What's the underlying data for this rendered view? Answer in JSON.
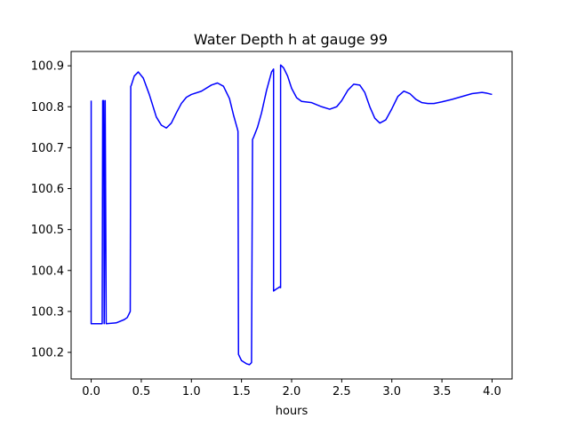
{
  "chart_data": {
    "type": "line",
    "title": "Water Depth h at gauge 99",
    "xlabel": "hours",
    "ylabel": "",
    "xlim": [
      -0.2,
      4.2
    ],
    "ylim": [
      100.135,
      100.935
    ],
    "xticks": [
      0.0,
      0.5,
      1.0,
      1.5,
      2.0,
      2.5,
      3.0,
      3.5,
      4.0
    ],
    "xtick_labels": [
      "0.0",
      "0.5",
      "1.0",
      "1.5",
      "2.0",
      "2.5",
      "3.0",
      "3.5",
      "4.0"
    ],
    "yticks": [
      100.2,
      100.3,
      100.4,
      100.5,
      100.6,
      100.7,
      100.8,
      100.9
    ],
    "ytick_labels": [
      "100.2",
      "100.3",
      "100.4",
      "100.5",
      "100.6",
      "100.7",
      "100.8",
      "100.9"
    ],
    "grid": false,
    "series": [
      {
        "color": "#0000ff",
        "x": [
          0.0,
          0.0,
          0.05,
          0.11,
          0.115,
          0.125,
          0.13,
          0.14,
          0.15,
          0.25,
          0.33,
          0.36,
          0.39,
          0.395,
          0.4,
          0.43,
          0.47,
          0.52,
          0.58,
          0.65,
          0.7,
          0.75,
          0.8,
          0.85,
          0.9,
          0.95,
          1.0,
          1.1,
          1.2,
          1.26,
          1.32,
          1.38,
          1.42,
          1.46,
          1.465,
          1.47,
          1.5,
          1.55,
          1.58,
          1.6,
          1.61,
          1.62,
          1.66,
          1.7,
          1.75,
          1.8,
          1.82,
          1.82,
          1.85,
          1.87,
          1.88,
          1.89,
          1.89,
          1.92,
          1.96,
          2.0,
          2.05,
          2.1,
          2.2,
          2.3,
          2.38,
          2.45,
          2.5,
          2.56,
          2.62,
          2.68,
          2.73,
          2.78,
          2.83,
          2.88,
          2.94,
          3.0,
          3.06,
          3.12,
          3.18,
          3.24,
          3.3,
          3.36,
          3.42,
          3.5,
          3.6,
          3.7,
          3.8,
          3.9,
          3.95,
          4.0
        ],
        "y": [
          100.815,
          100.27,
          100.27,
          100.27,
          100.815,
          100.815,
          100.27,
          100.815,
          100.27,
          100.272,
          100.28,
          100.285,
          100.3,
          100.85,
          100.852,
          100.875,
          100.885,
          100.87,
          100.83,
          100.775,
          100.755,
          100.748,
          100.76,
          100.785,
          100.808,
          100.823,
          100.83,
          100.838,
          100.853,
          100.858,
          100.85,
          100.82,
          100.78,
          100.745,
          100.74,
          100.195,
          100.18,
          100.172,
          100.17,
          100.175,
          100.72,
          100.725,
          100.75,
          100.785,
          100.84,
          100.885,
          100.892,
          100.35,
          100.355,
          100.358,
          100.36,
          100.358,
          100.902,
          100.895,
          100.875,
          100.845,
          100.822,
          100.813,
          100.81,
          100.8,
          100.794,
          100.8,
          100.815,
          100.84,
          100.855,
          100.853,
          100.835,
          100.8,
          100.772,
          100.76,
          100.768,
          100.795,
          100.825,
          100.838,
          100.832,
          100.818,
          100.81,
          100.808,
          100.808,
          100.812,
          100.818,
          100.825,
          100.832,
          100.835,
          100.833,
          100.83
        ]
      }
    ]
  }
}
